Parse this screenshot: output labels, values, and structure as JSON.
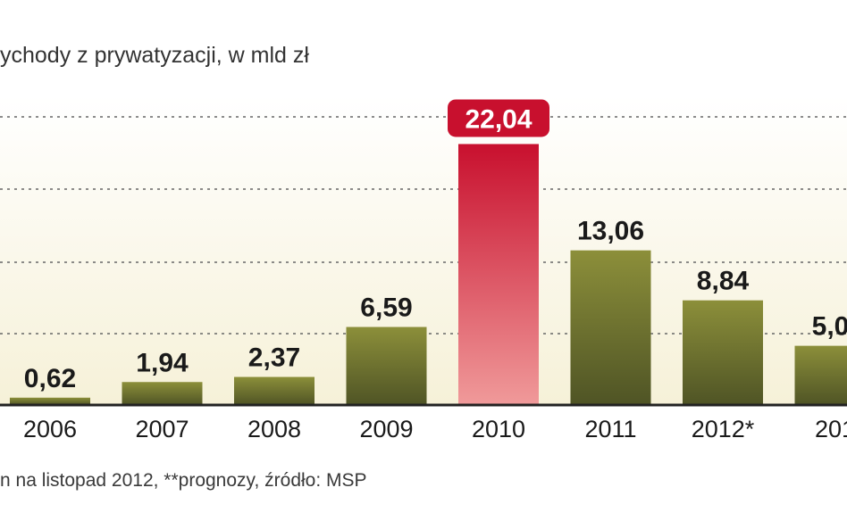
{
  "chart_data": {
    "type": "bar",
    "title": "ychody z prywatyzacji, w mld zł",
    "footnote": "n na listopad 2012, **prognozy, źródło: MSP",
    "categories": [
      "2006",
      "2007",
      "2008",
      "2009",
      "2010",
      "2011",
      "2012*",
      "201"
    ],
    "values": [
      0.62,
      1.94,
      2.37,
      6.59,
      22.04,
      13.06,
      8.84,
      5.0
    ],
    "value_labels": [
      "0,62",
      "1,94",
      "2,37",
      "6,59",
      "22,04",
      "13,06",
      "8,84",
      "5,0("
    ],
    "highlight_index": 4,
    "ylim": [
      0,
      22
    ],
    "grid": "dotted horizontal",
    "colors": {
      "bar_top": "#8c8f3a",
      "bar_bottom": "#4f5425",
      "highlight_top": "#c8102e",
      "highlight_bottom": "#f09a9a",
      "highlight_label_bg": "#c8102e",
      "axis": "#222222",
      "grid": "#666666",
      "plot_bg_top": "#ffffff",
      "plot_bg_bottom": "#f6f1d8"
    }
  }
}
